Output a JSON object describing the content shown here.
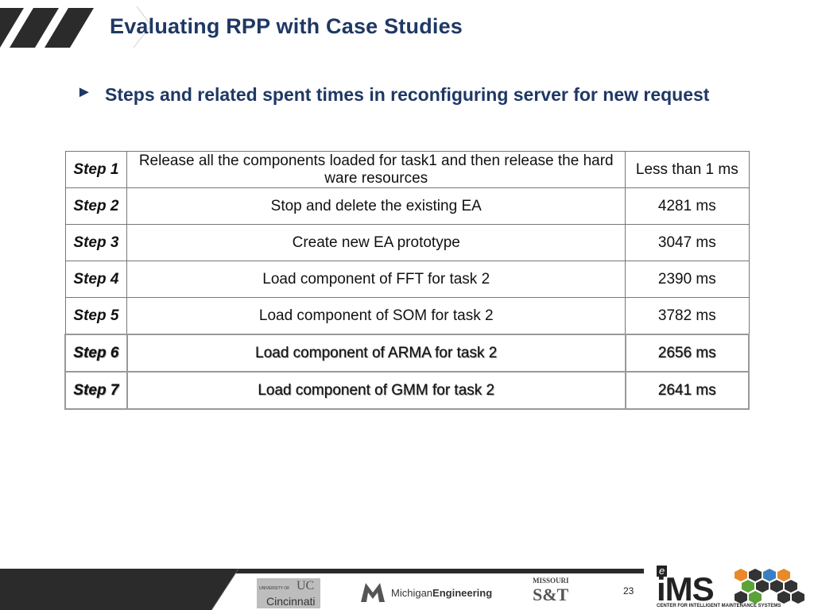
{
  "slide": {
    "title": "Evaluating RPP with Case Studies",
    "bullet_marker": "►",
    "bullet_text": "Steps and related spent times in reconfiguring server for new request",
    "page_number": "23"
  },
  "table": {
    "rows": [
      {
        "step": "Step 1",
        "desc": "Release all the components loaded for task1 and then release the hard ware resources",
        "time": "Less than 1 ms"
      },
      {
        "step": "Step 2",
        "desc": "Stop and delete the existing EA",
        "time": "4281 ms"
      },
      {
        "step": "Step 3",
        "desc": "Create new EA prototype",
        "time": "3047 ms"
      },
      {
        "step": "Step 4",
        "desc": "Load component of FFT for task 2",
        "time": "2390 ms"
      },
      {
        "step": "Step 5",
        "desc": "Load component of SOM for task 2",
        "time": "3782 ms"
      },
      {
        "step": "Step 6",
        "desc": "Load component of ARMA for task 2",
        "time": "2656 ms"
      },
      {
        "step": "Step 7",
        "desc": "Load component of GMM for task 2",
        "time": "2641 ms"
      }
    ]
  },
  "footer": {
    "uc_small": "UNIVERSITY OF",
    "uc_name": "Cincinnati",
    "michigan_a": "Michigan",
    "michigan_b": "Engineering",
    "missouri_a": "MISSOURI",
    "missouri_b": "S&T",
    "ims_e": "e",
    "ims_name": "iMS",
    "ims_caption": "CENTER FOR INTELLIGENT MAINTENANCE SYSTEMS"
  },
  "colors": {
    "title": "#1f3864",
    "footer_dark": "#2b2b2b",
    "hex_blue": "#3a7fc1",
    "hex_orange": "#e8892a",
    "hex_green": "#5aa23a",
    "hex_dark": "#333333"
  }
}
